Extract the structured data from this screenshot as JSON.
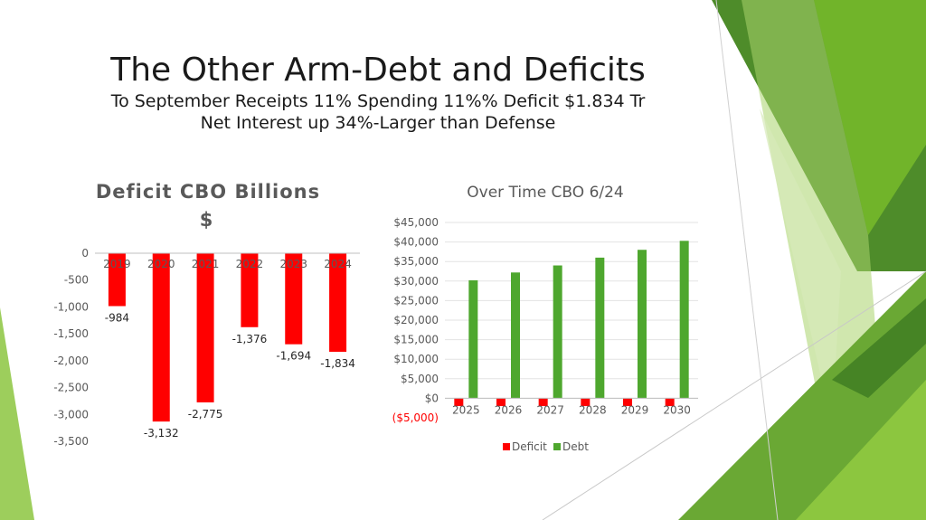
{
  "slide": {
    "title": "The Other Arm-Debt and Deficits",
    "subtitle_line1": "To September Receipts 11% Spending 11%% Deficit $1.834 Tr",
    "subtitle_line2": "Net Interest up 34%-Larger than Defense"
  },
  "colors": {
    "deficit_red": "#ff0000",
    "debt_green": "#4ea72e",
    "accent_green": "#76b82a",
    "axis_gray": "#bfbfbf",
    "text_gray": "#595959",
    "negative_red": "#ff0000"
  },
  "chart_data": [
    {
      "type": "bar",
      "title_line1": "Deficit CBO Billions",
      "title_line2": "$",
      "categories": [
        "2019",
        "2020",
        "2021",
        "2022",
        "2023",
        "2024"
      ],
      "values": [
        -984,
        -3132,
        -2775,
        -1376,
        -1694,
        -1834
      ],
      "data_labels": [
        "-984",
        "-3,132",
        "-2,775",
        "-1,376",
        "-1,694",
        "-1,834"
      ],
      "ylim": [
        -3500,
        0
      ],
      "yticks": [
        0,
        -500,
        -1000,
        -1500,
        -2000,
        -2500,
        -3000,
        -3500
      ],
      "ytick_labels": [
        "0",
        "-500",
        "-1,000",
        "-1,500",
        "-2,000",
        "-2,500",
        "-3,000",
        "-3,500"
      ],
      "grid": false,
      "legend": "none"
    },
    {
      "type": "bar",
      "title": "Over Time CBO 6/24",
      "categories": [
        "2025",
        "2026",
        "2027",
        "2028",
        "2029",
        "2030"
      ],
      "series": [
        {
          "name": "Deficit",
          "values": [
            -2000,
            -2000,
            -2000,
            -2000,
            -2000,
            -2000
          ]
        },
        {
          "name": "Debt",
          "values": [
            30200,
            32200,
            34000,
            36000,
            38000,
            40300
          ]
        }
      ],
      "ylim": [
        -5000,
        45000
      ],
      "yticks": [
        45000,
        40000,
        35000,
        30000,
        25000,
        20000,
        15000,
        10000,
        5000,
        0,
        -5000
      ],
      "ytick_labels": [
        "$45,000",
        "$40,000",
        "$35,000",
        "$30,000",
        "$25,000",
        "$20,000",
        "$15,000",
        "$10,000",
        "$5,000",
        "$0",
        "($5,000)"
      ],
      "grid": true,
      "legend": "bottom"
    }
  ]
}
